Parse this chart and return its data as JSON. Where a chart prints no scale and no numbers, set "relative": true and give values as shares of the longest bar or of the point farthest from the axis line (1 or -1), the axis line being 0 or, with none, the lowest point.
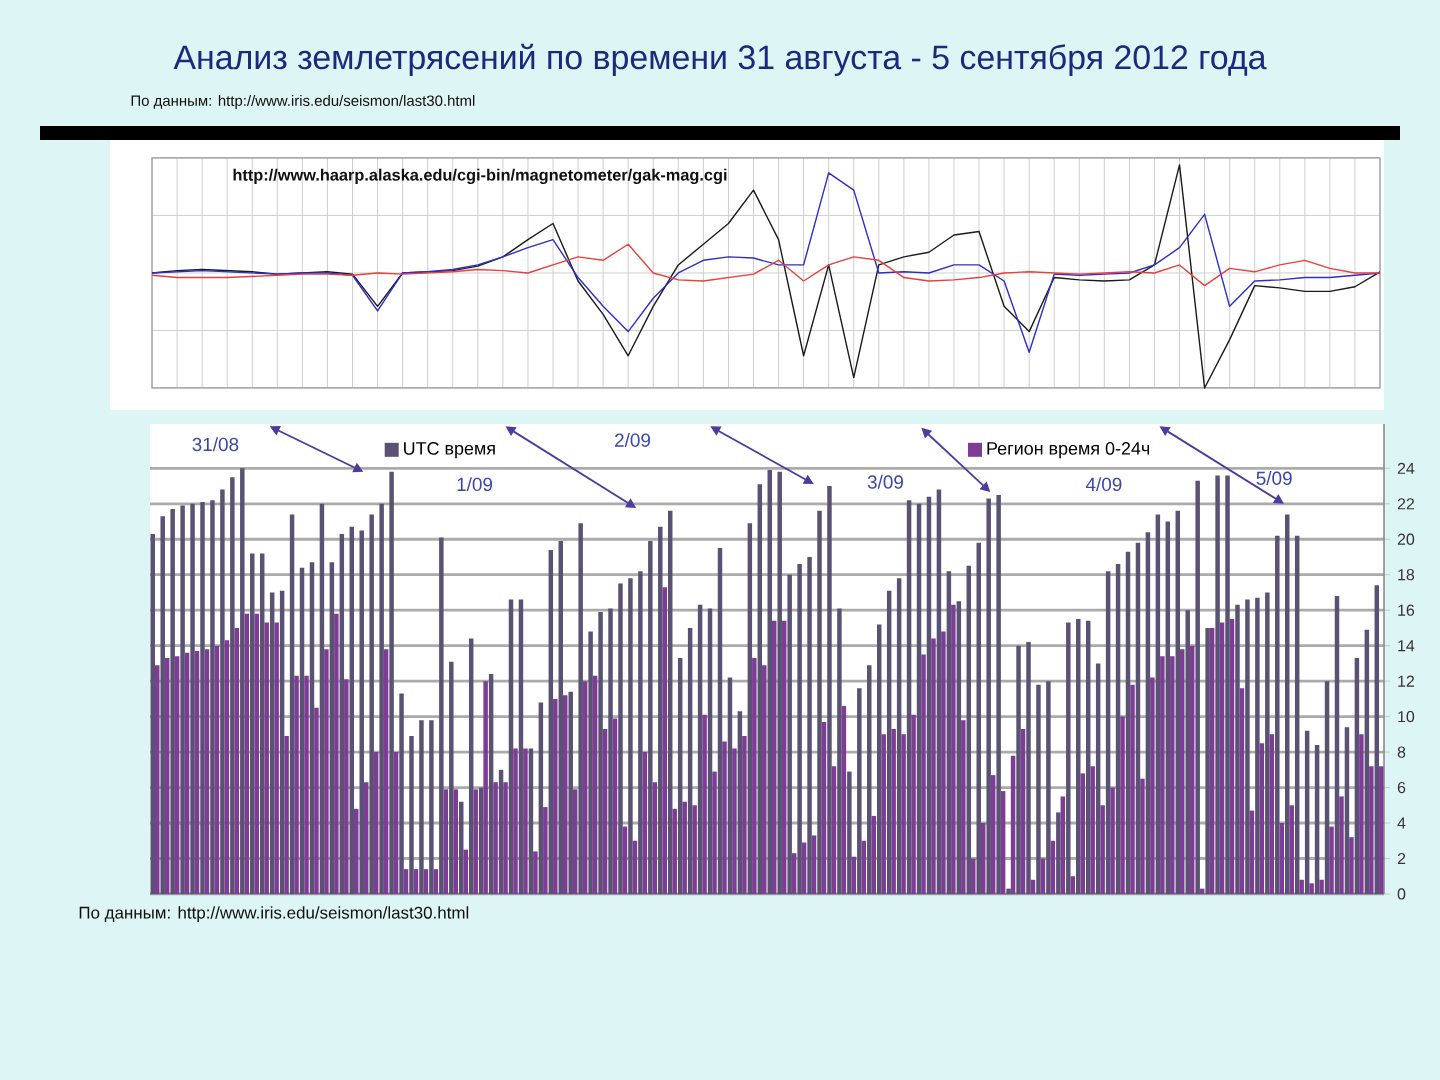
{
  "chart_data": [
    {
      "type": "line",
      "title": "Анализ землетрясений по времени   31 августа - 5 сентября 2012 года",
      "subtitle": "По данным: http://www.iris.edu/seismon/last30.html",
      "relative": true,
      "grid": true,
      "categories": [
        null,
        null,
        null,
        null,
        null,
        null,
        null,
        null,
        null,
        null,
        null,
        null,
        null,
        null,
        null,
        null,
        null,
        null,
        null,
        null,
        null,
        null,
        null,
        null,
        null,
        null,
        null,
        null,
        null,
        null,
        null,
        null,
        null,
        null,
        null,
        null,
        null,
        null,
        null,
        null,
        null,
        null,
        null,
        null,
        null,
        null,
        null,
        null,
        null,
        null
      ],
      "series": [
        {
          "color": "#1a1a1a",
          "values": [
            0,
            0.02,
            0.03,
            0.02,
            0.01,
            -0.01,
            0,
            0.01,
            -0.01,
            -0.29,
            0,
            0.01,
            0.02,
            0.06,
            0.14,
            0.29,
            0.43,
            -0.07,
            -0.36,
            -0.72,
            -0.29,
            0.07,
            0.25,
            0.43,
            0.72,
            0.29,
            -0.72,
            0.07,
            -0.91,
            0.07,
            0.14,
            0.18,
            0.33,
            0.36,
            -0.29,
            -0.51,
            -0.04,
            -0.06,
            -0.07,
            -0.06,
            0.07,
            0.94,
            -1.0,
            -0.58,
            -0.11,
            -0.13,
            -0.16,
            -0.16,
            -0.12,
            0.01
          ]
        },
        {
          "color": "#2e2ec8",
          "values": [
            0,
            0.01,
            0.02,
            0.01,
            0,
            -0.01,
            0,
            0,
            -0.02,
            -0.33,
            0,
            0.01,
            0.03,
            0.07,
            0.14,
            0.22,
            0.29,
            -0.04,
            -0.29,
            -0.51,
            -0.22,
            0,
            0.11,
            0.14,
            0.13,
            0.07,
            0.07,
            0.87,
            0.72,
            0,
            0.01,
            0,
            0.07,
            0.07,
            -0.07,
            -0.69,
            -0.01,
            -0.02,
            -0.01,
            0,
            0.07,
            0.22,
            0.51,
            -0.29,
            -0.07,
            -0.06,
            -0.04,
            -0.04,
            -0.02,
            0
          ]
        },
        {
          "color": "#e8403c",
          "values": [
            -0.02,
            -0.04,
            -0.04,
            -0.04,
            -0.03,
            -0.02,
            -0.01,
            -0.01,
            -0.02,
            0,
            -0.01,
            0,
            0.01,
            0.03,
            0.02,
            0,
            0.07,
            0.14,
            0.11,
            0.25,
            0,
            -0.06,
            -0.07,
            -0.04,
            -0.01,
            0.11,
            -0.07,
            0.07,
            0.14,
            0.11,
            -0.04,
            -0.07,
            -0.06,
            -0.04,
            0,
            0.01,
            0,
            -0.01,
            0,
            0.01,
            0,
            0.07,
            -0.11,
            0.04,
            0.01,
            0.07,
            0.11,
            0.04,
            0,
            0
          ]
        }
      ],
      "annotations": [
        "http://www.haarp.alaska.edu/cgi-bin/magnetometer/gak-mag.cgi"
      ]
    },
    {
      "type": "bar",
      "ylim": [
        0,
        26.5
      ],
      "yticks": [
        0,
        2,
        4,
        6,
        8,
        10,
        12,
        14,
        16,
        18,
        20,
        22,
        24
      ],
      "grid": "y",
      "legend": "top",
      "tick_labels": "y",
      "categories": [
        null,
        null,
        null,
        null,
        null,
        null,
        null,
        null,
        null,
        null,
        null,
        null,
        null,
        null,
        null,
        null,
        null,
        null,
        null,
        null,
        null,
        null,
        null,
        null,
        null,
        null,
        null,
        null,
        null,
        null,
        null,
        null,
        null,
        null,
        null,
        null,
        null,
        null,
        null,
        null,
        null,
        null,
        null,
        null,
        null,
        null,
        null,
        null,
        null,
        null,
        null,
        null,
        null,
        null,
        null,
        null,
        null,
        null,
        null,
        null,
        null,
        null,
        null,
        null,
        null,
        null,
        null,
        null,
        null,
        null,
        null,
        null,
        null,
        null,
        null,
        null,
        null,
        null,
        null,
        null,
        null,
        null,
        null,
        null,
        null,
        null,
        null,
        null,
        null,
        null,
        null,
        null,
        null,
        null,
        null,
        null,
        null,
        null,
        null,
        null,
        null,
        null,
        null,
        null,
        null,
        null,
        null,
        null,
        null,
        null,
        null,
        null,
        null,
        null,
        null,
        null,
        null,
        null,
        null,
        null,
        null,
        null,
        null,
        null
      ],
      "series": [
        {
          "name": "UTC время",
          "color": "#5a5272",
          "values": [
            20.3,
            21.3,
            21.7,
            21.9,
            22.0,
            22.1,
            22.2,
            22.8,
            23.5,
            24.0,
            19.2,
            19.2,
            17.0,
            17.1,
            21.4,
            18.4,
            18.7,
            22.0,
            18.7,
            20.3,
            20.7,
            20.5,
            21.4,
            22.0,
            23.8,
            11.3,
            8.9,
            9.8,
            9.8,
            20.1,
            13.1,
            5.2,
            14.4,
            6.0,
            12.4,
            7.0,
            16.6,
            16.6,
            8.2,
            10.8,
            19.4,
            19.9,
            11.4,
            20.9,
            14.8,
            15.9,
            16.1,
            17.5,
            17.8,
            18.2,
            19.9,
            20.7,
            21.6,
            13.3,
            15.0,
            16.3,
            16.1,
            19.5,
            12.2,
            10.3,
            20.9,
            23.1,
            23.9,
            23.8,
            18.0,
            18.6,
            19.0,
            21.6,
            23.0,
            16.1,
            6.9,
            11.6,
            12.9,
            15.2,
            17.1,
            17.8,
            22.2,
            22.0,
            22.4,
            22.8,
            18.2,
            16.5,
            18.5,
            19.8,
            22.3,
            22.5,
            0.3,
            14.0,
            14.2,
            11.8,
            12.0,
            4.6,
            15.3,
            15.5,
            15.4,
            13.0,
            18.2,
            18.6,
            19.3,
            19.8,
            20.4,
            21.4,
            21.0,
            21.6,
            16.0,
            23.3,
            15.0,
            23.6,
            23.6,
            16.3,
            16.6,
            16.7,
            17.0,
            20.2,
            21.4,
            20.2,
            9.2,
            8.4,
            12.0,
            16.8,
            9.4,
            13.3,
            14.9,
            17.4
          ]
        },
        {
          "name": "Регион время 0-24ч",
          "color": "#7e3c96",
          "values": [
            12.9,
            13.3,
            13.4,
            13.6,
            13.7,
            13.8,
            14.0,
            14.3,
            15.0,
            15.8,
            15.8,
            15.3,
            15.3,
            8.9,
            12.3,
            12.3,
            10.5,
            13.8,
            15.8,
            12.1,
            4.8,
            6.3,
            8.0,
            13.8,
            8.0,
            1.4,
            1.4,
            1.4,
            1.4,
            5.9,
            5.9,
            2.5,
            5.9,
            12.0,
            6.3,
            6.3,
            8.2,
            8.2,
            2.4,
            4.9,
            11.0,
            11.2,
            5.9,
            12.0,
            12.3,
            9.3,
            9.9,
            3.8,
            3.0,
            8.0,
            6.3,
            17.3,
            4.8,
            5.2,
            5.0,
            10.1,
            6.9,
            8.6,
            8.2,
            8.9,
            13.3,
            12.9,
            15.4,
            15.4,
            2.3,
            2.9,
            3.3,
            9.7,
            7.2,
            10.6,
            2.1,
            3.0,
            4.4,
            9.0,
            9.3,
            9.0,
            10.1,
            13.5,
            14.4,
            14.8,
            16.3,
            9.8,
            2.0,
            4.0,
            6.7,
            5.8,
            7.8,
            9.3,
            0.8,
            2.0,
            3.0,
            5.5,
            1.0,
            6.8,
            7.2,
            5.0,
            6.0,
            10.0,
            11.8,
            6.5,
            12.2,
            13.4,
            13.4,
            13.8,
            14.0,
            0.3,
            15.0,
            15.3,
            15.5,
            11.6,
            4.7,
            8.5,
            9.0,
            4.0,
            5.0,
            0.8,
            0.6,
            0.8,
            3.8,
            5.5,
            3.2,
            9.0,
            7.2,
            7.2
          ]
        }
      ],
      "annotations": [
        "31/08",
        "1/09",
        "2/09",
        "3/09",
        "4/09",
        "5/09",
        "По данным: http://www.iris.edu/seismon/last30.html"
      ]
    }
  ]
}
